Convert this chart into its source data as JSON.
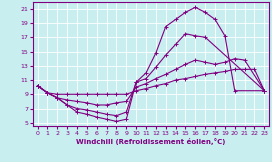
{
  "xlabel": "Windchill (Refroidissement éolien,°C)",
  "bg_color": "#c8eef0",
  "line_color": "#800080",
  "grid_color": "#ffffff",
  "xlim": [
    -0.5,
    23.5
  ],
  "ylim": [
    4.5,
    22
  ],
  "yticks": [
    5,
    7,
    9,
    11,
    13,
    15,
    17,
    19,
    21
  ],
  "xticks": [
    0,
    1,
    2,
    3,
    4,
    5,
    6,
    7,
    8,
    9,
    10,
    11,
    12,
    13,
    14,
    15,
    16,
    17,
    18,
    19,
    20,
    21,
    22,
    23
  ],
  "curves": [
    {
      "x": [
        0,
        1,
        2,
        3,
        4,
        5,
        6,
        7,
        8,
        9,
        10,
        11,
        12,
        13,
        14,
        15,
        16,
        17,
        18,
        19,
        20,
        23
      ],
      "y": [
        10.2,
        9.2,
        8.5,
        7.5,
        6.5,
        6.2,
        5.8,
        5.5,
        5.2,
        5.5,
        10.7,
        12.0,
        14.8,
        18.5,
        19.5,
        20.5,
        21.2,
        20.5,
        19.5,
        17.2,
        9.5,
        9.5
      ]
    },
    {
      "x": [
        0,
        1,
        2,
        3,
        4,
        5,
        6,
        7,
        8,
        9,
        10,
        11,
        12,
        13,
        14,
        15,
        16,
        17,
        23
      ],
      "y": [
        10.2,
        9.2,
        8.5,
        7.5,
        7.0,
        6.8,
        6.5,
        6.2,
        6.0,
        6.5,
        10.7,
        11.2,
        12.8,
        14.5,
        16.0,
        17.5,
        17.2,
        17.0,
        9.5
      ]
    },
    {
      "x": [
        0,
        1,
        2,
        3,
        4,
        5,
        6,
        7,
        8,
        9,
        10,
        11,
        12,
        13,
        14,
        15,
        16,
        17,
        18,
        19,
        20,
        21,
        23
      ],
      "y": [
        10.2,
        9.2,
        8.5,
        8.2,
        8.0,
        7.8,
        7.5,
        7.5,
        7.8,
        8.0,
        10.0,
        10.5,
        11.2,
        11.8,
        12.5,
        13.2,
        13.8,
        13.5,
        13.2,
        13.5,
        14.0,
        13.8,
        9.5
      ]
    },
    {
      "x": [
        0,
        1,
        2,
        3,
        4,
        5,
        6,
        7,
        8,
        9,
        10,
        11,
        12,
        13,
        14,
        15,
        16,
        17,
        18,
        19,
        20,
        21,
        22,
        23
      ],
      "y": [
        10.2,
        9.2,
        9.0,
        9.0,
        9.0,
        9.0,
        9.0,
        9.0,
        9.0,
        9.0,
        9.5,
        9.8,
        10.2,
        10.5,
        11.0,
        11.2,
        11.5,
        11.8,
        12.0,
        12.2,
        12.5,
        12.5,
        12.5,
        9.5
      ]
    }
  ],
  "marker": "+",
  "markersize": 3,
  "linewidth": 0.8,
  "tick_fontsize": 4.5,
  "xlabel_fontsize": 5.0
}
